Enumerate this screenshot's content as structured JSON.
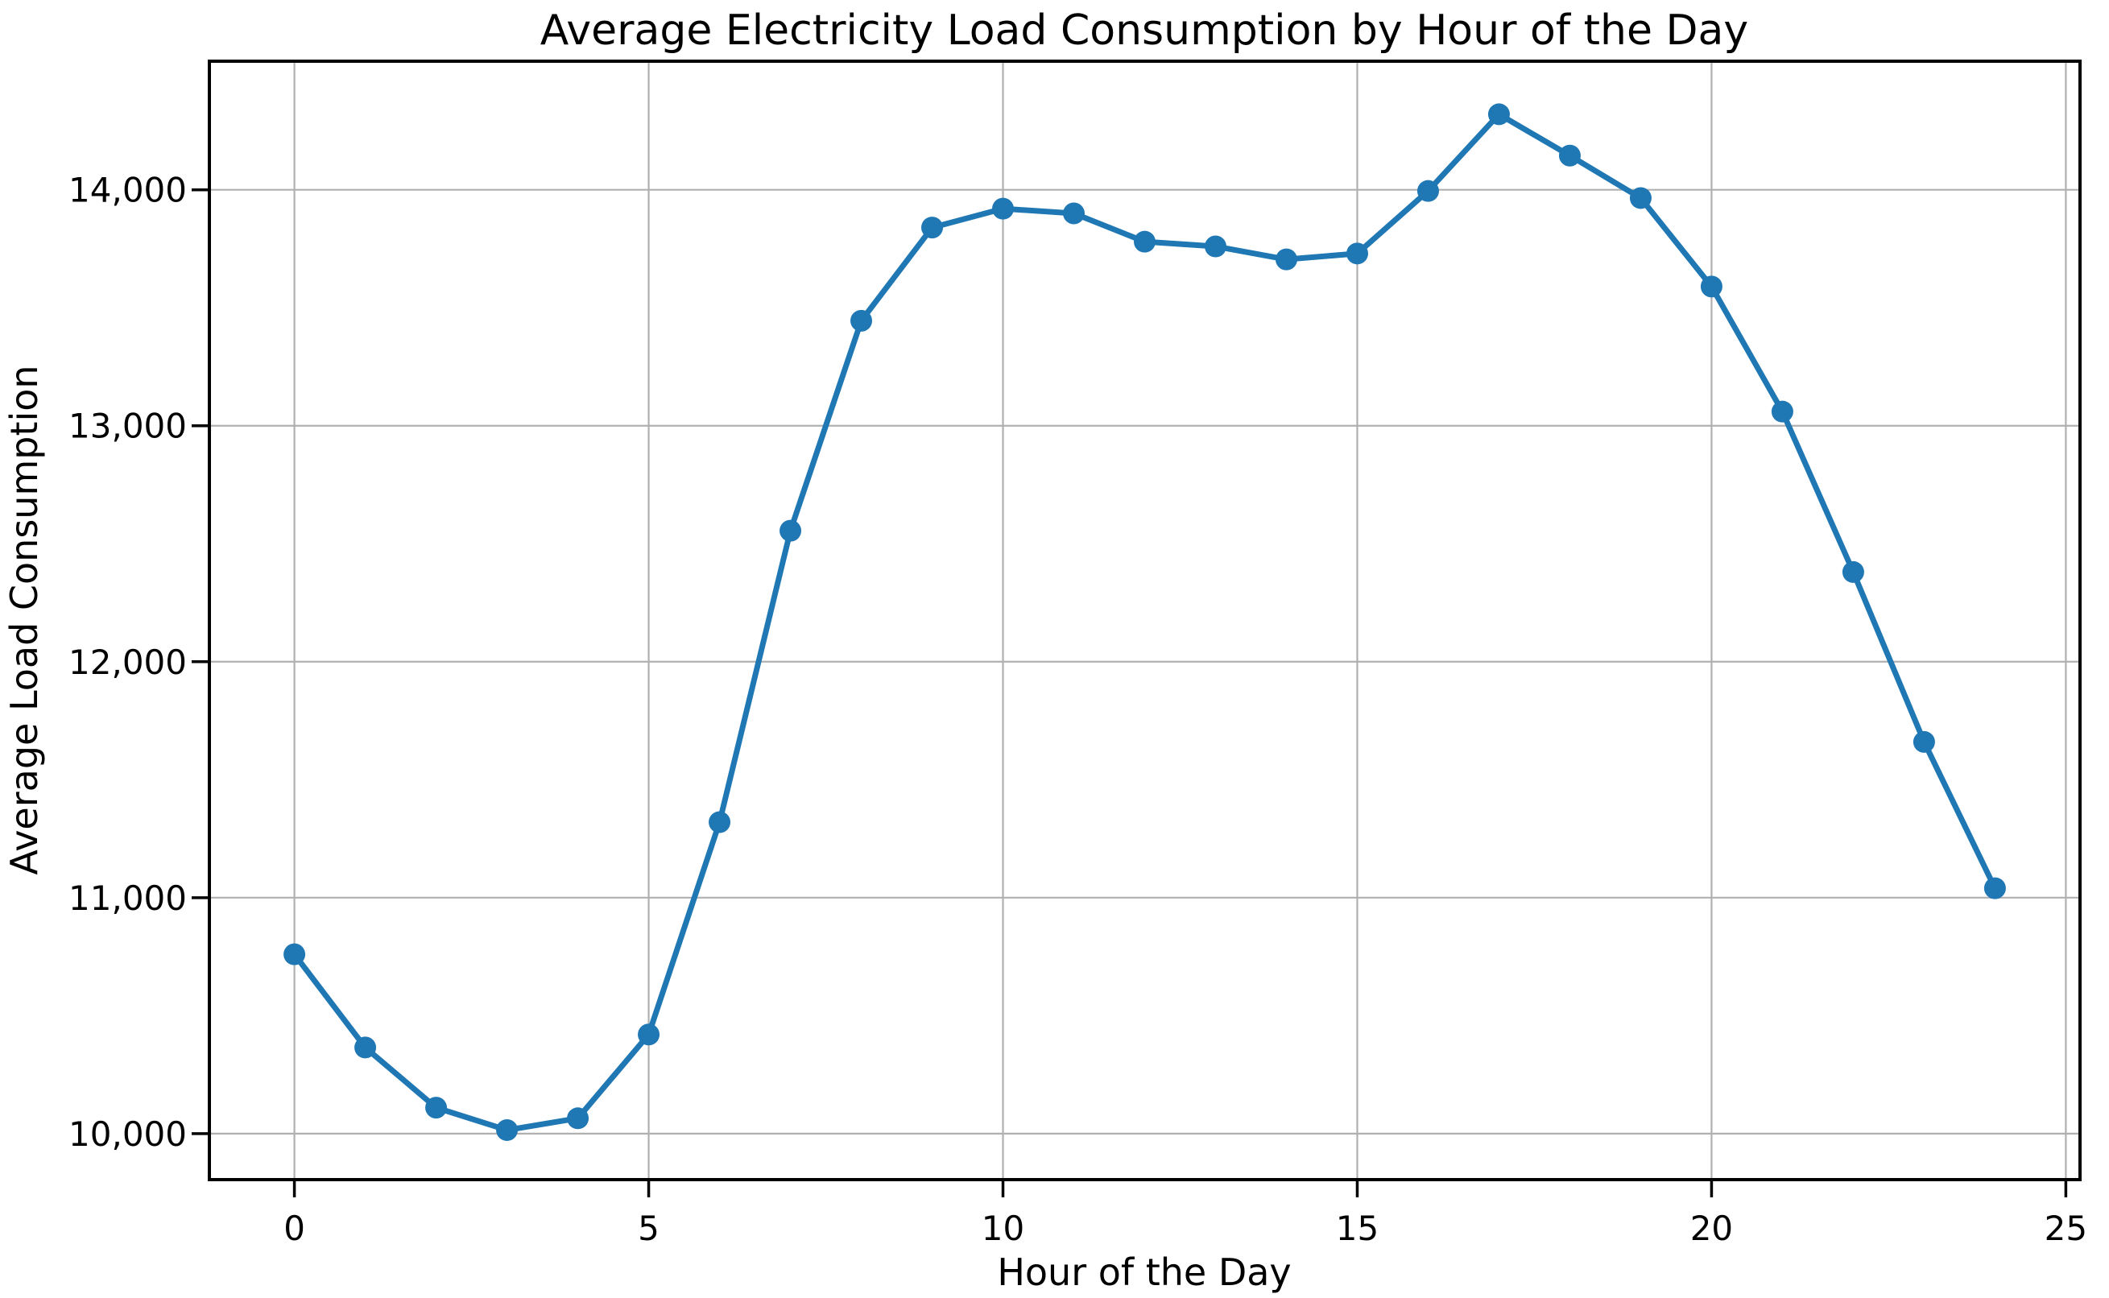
{
  "figure": {
    "background": "#ffffff"
  },
  "chart_data": {
    "type": "line",
    "title": "Average Electricity Load Consumption by Hour of the Day",
    "xlabel": "Hour of the Day",
    "ylabel": "Average Load Consumption",
    "x": [
      0,
      1,
      2,
      3,
      4,
      5,
      6,
      7,
      8,
      9,
      10,
      11,
      12,
      13,
      14,
      15,
      16,
      17,
      18,
      19,
      20,
      21,
      22,
      23,
      24
    ],
    "values": [
      10760,
      10365,
      10110,
      10015,
      10065,
      10420,
      11320,
      12555,
      13445,
      13840,
      13920,
      13900,
      13780,
      13760,
      13705,
      13730,
      13995,
      14320,
      14145,
      13965,
      13590,
      13060,
      12380,
      11660,
      11040
    ],
    "xlim": [
      -1.2,
      25.2
    ],
    "ylim": [
      9805,
      14545
    ],
    "xticks": [
      0,
      5,
      10,
      15,
      20,
      25
    ],
    "xtick_labels": [
      "0",
      "5",
      "10",
      "15",
      "20",
      "25"
    ],
    "yticks": [
      10000,
      11000,
      12000,
      13000,
      14000
    ],
    "ytick_labels": [
      "10,000",
      "11,000",
      "12,000",
      "13,000",
      "14,000"
    ],
    "grid": true,
    "legend": "none",
    "line_color": "#1f77b4",
    "marker": "circle",
    "grid_color": "#b0b0b0",
    "spine_color": "#000000"
  }
}
